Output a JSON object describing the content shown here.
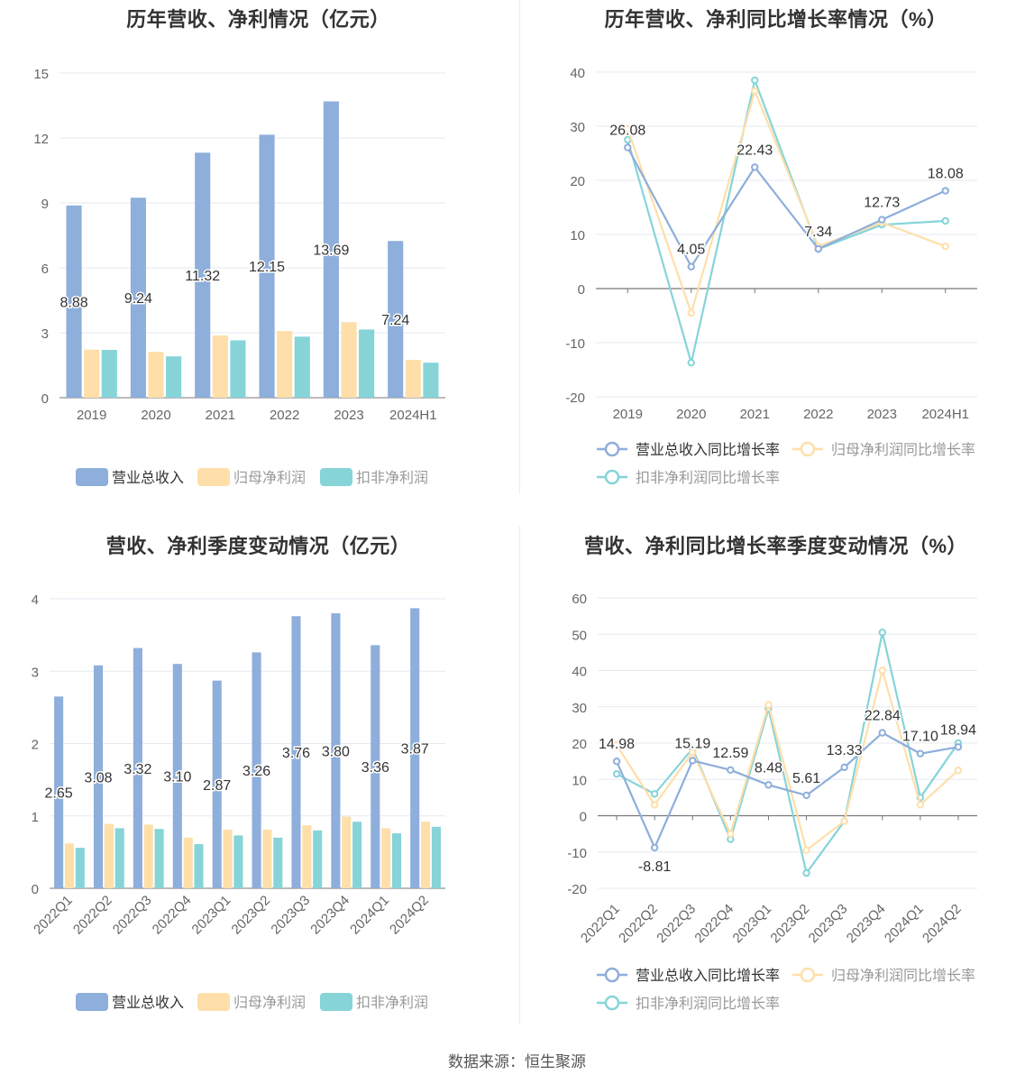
{
  "source_text": "数据来源：恒生聚源",
  "chart_data": [
    {
      "id": "annual_amount",
      "type": "bar",
      "title": "历年营收、净利情况（亿元）",
      "categories": [
        "2019",
        "2020",
        "2021",
        "2022",
        "2023",
        "2024H1"
      ],
      "ylim": [
        0,
        15
      ],
      "yticks": [
        0,
        3,
        6,
        9,
        12,
        15
      ],
      "grid": true,
      "legend_position": "bottom",
      "series": [
        {
          "name": "营业总收入",
          "color": "#8eaedb",
          "values": [
            8.88,
            9.24,
            11.32,
            12.15,
            13.69,
            7.24
          ],
          "labels": [
            "8.88",
            "9.24",
            "11.32",
            "12.15",
            "13.69",
            "7.24"
          ]
        },
        {
          "name": "归母净利润",
          "color": "#fedfaa",
          "values": [
            2.22,
            2.12,
            2.88,
            3.08,
            3.49,
            1.75
          ]
        },
        {
          "name": "扣非净利润",
          "color": "#86d4d8",
          "values": [
            2.21,
            1.91,
            2.65,
            2.82,
            3.15,
            1.62
          ]
        }
      ]
    },
    {
      "id": "annual_growth",
      "type": "line",
      "title": "历年营收、净利同比增长率情况（%）",
      "categories": [
        "2019",
        "2020",
        "2021",
        "2022",
        "2023",
        "2024H1"
      ],
      "ylim": [
        -20,
        40
      ],
      "yticks": [
        -20,
        -10,
        0,
        10,
        20,
        30,
        40
      ],
      "grid": true,
      "legend_position": "bottom",
      "series": [
        {
          "name": "营业总收入同比增长率",
          "color": "#8eaedb",
          "values": [
            26.08,
            4.05,
            22.43,
            7.34,
            12.73,
            18.08
          ],
          "labels": [
            "26.08",
            "4.05",
            "22.43",
            "7.34",
            "12.73",
            "18.08"
          ]
        },
        {
          "name": "归母净利润同比增长率",
          "color": "#fedfaa",
          "values": [
            29.5,
            -4.5,
            36.5,
            7.8,
            12.2,
            7.8
          ]
        },
        {
          "name": "扣非净利润同比增长率",
          "color": "#86d4d8",
          "values": [
            27.5,
            -13.7,
            38.5,
            7.3,
            11.8,
            12.5
          ]
        }
      ]
    },
    {
      "id": "quarterly_amount",
      "type": "bar",
      "title": "营收、净利季度变动情况（亿元）",
      "categories": [
        "2022Q1",
        "2022Q2",
        "2022Q3",
        "2022Q4",
        "2023Q1",
        "2023Q2",
        "2023Q3",
        "2023Q4",
        "2024Q1",
        "2024Q2"
      ],
      "ylim": [
        0,
        4
      ],
      "yticks": [
        0,
        1,
        2,
        3,
        4
      ],
      "grid": true,
      "legend_position": "bottom",
      "series": [
        {
          "name": "营业总收入",
          "color": "#8eaedb",
          "values": [
            2.65,
            3.08,
            3.32,
            3.1,
            2.87,
            3.26,
            3.76,
            3.8,
            3.36,
            3.87
          ],
          "labels": [
            "2.65",
            "3.08",
            "3.32",
            "3.10",
            "2.87",
            "3.26",
            "3.76",
            "3.80",
            "3.36",
            "3.87"
          ]
        },
        {
          "name": "归母净利润",
          "color": "#fedfaa",
          "values": [
            0.62,
            0.89,
            0.88,
            0.7,
            0.81,
            0.81,
            0.87,
            0.99,
            0.83,
            0.92
          ]
        },
        {
          "name": "扣非净利润",
          "color": "#86d4d8",
          "values": [
            0.56,
            0.83,
            0.82,
            0.61,
            0.73,
            0.7,
            0.8,
            0.92,
            0.76,
            0.85
          ]
        }
      ]
    },
    {
      "id": "quarterly_growth",
      "type": "line",
      "title": "营收、净利同比增长率季度变动情况（%）",
      "categories": [
        "2022Q1",
        "2022Q2",
        "2022Q3",
        "2022Q4",
        "2023Q1",
        "2023Q2",
        "2023Q3",
        "2023Q4",
        "2024Q1",
        "2024Q2"
      ],
      "ylim": [
        -20,
        60
      ],
      "yticks": [
        -20,
        -10,
        0,
        10,
        20,
        30,
        40,
        50,
        60
      ],
      "grid": true,
      "legend_position": "bottom",
      "series": [
        {
          "name": "营业总收入同比增长率",
          "color": "#8eaedb",
          "values": [
            14.98,
            -8.81,
            15.19,
            12.59,
            8.48,
            5.61,
            13.33,
            22.84,
            17.1,
            18.94
          ],
          "labels": [
            "14.98",
            "-8.81",
            "15.19",
            "12.59",
            "8.48",
            "5.61",
            "13.33",
            "22.84",
            "17.10",
            "18.94"
          ]
        },
        {
          "name": "归母净利润同比增长率",
          "color": "#fedfaa",
          "values": [
            19.5,
            3.0,
            17.5,
            -5.0,
            30.5,
            -9.5,
            -1.5,
            40.0,
            3.0,
            12.5
          ]
        },
        {
          "name": "扣非净利润同比增长率",
          "color": "#86d4d8",
          "values": [
            11.5,
            6.0,
            18.5,
            -6.5,
            29.5,
            -15.8,
            -1.5,
            50.5,
            5.0,
            20.0
          ]
        }
      ]
    }
  ]
}
